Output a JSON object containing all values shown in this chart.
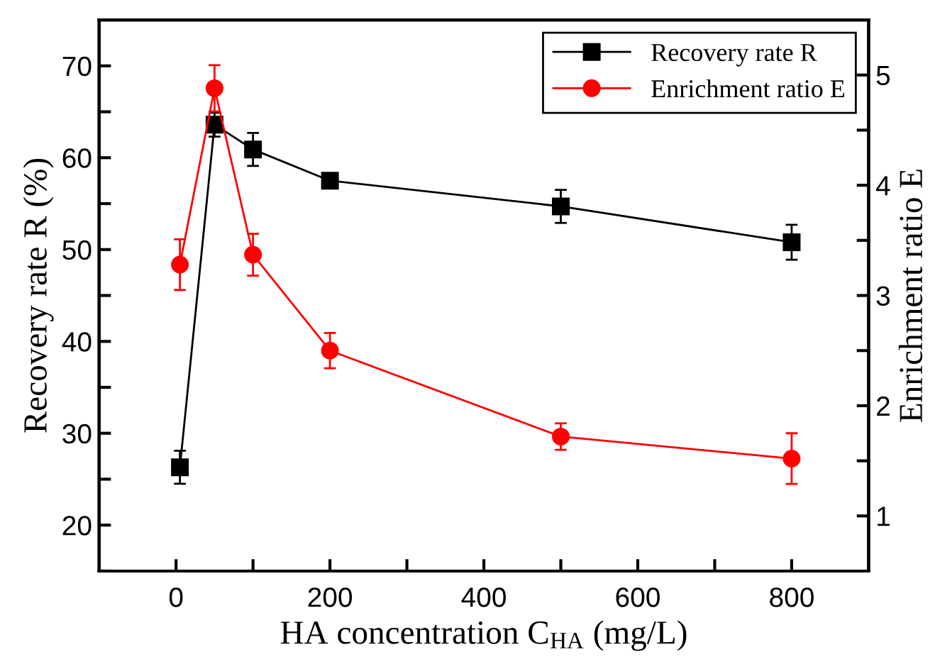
{
  "chart_data": {
    "type": "line",
    "xlabel": "HA concentration C$_{HA}$ (mg/L)",
    "ylabel": "Recovery rate R (%)",
    "y2label": "Enrichment ratio E",
    "x": [
      5,
      50,
      100,
      200,
      500,
      800
    ],
    "series": [
      {
        "name": "Recovery rate R",
        "color": "#000000",
        "marker": "square",
        "values": [
          26.3,
          63.6,
          60.9,
          57.5,
          54.7,
          50.8
        ],
        "errors": [
          1.8,
          1.3,
          1.8,
          0.8,
          1.8,
          1.9
        ]
      },
      {
        "name": "Enrichment ratio E",
        "color": "#ff0000",
        "marker": "circle",
        "axis": "y2",
        "values": [
          3.28,
          4.88,
          3.37,
          2.5,
          1.72,
          1.52
        ],
        "errors": [
          0.23,
          0.21,
          0.19,
          0.16,
          0.12,
          0.23
        ]
      }
    ],
    "xlim": [
      -100,
      900
    ],
    "xticks": [
      0,
      {
        "value": 100,
        "label": null
      },
      200,
      {
        "value": 300,
        "label": null
      },
      400,
      {
        "value": 500,
        "label": null
      },
      600,
      {
        "value": 700,
        "label": null
      },
      800
    ],
    "ylim": [
      15,
      75
    ],
    "yticks": [
      {
        "value": 15,
        "label": null
      },
      20,
      {
        "value": 25,
        "label": null
      },
      30,
      {
        "value": 35,
        "label": null
      },
      40,
      {
        "value": 45,
        "label": null
      },
      50,
      {
        "value": 55,
        "label": null
      },
      60,
      {
        "value": 65,
        "label": null
      },
      70
    ],
    "y2lim": [
      0.5,
      5.5
    ],
    "y2ticks": [
      1,
      {
        "value": 1.5,
        "label": null
      },
      2,
      {
        "value": 2.5,
        "label": null
      },
      3,
      {
        "value": 3.5,
        "label": null
      },
      4,
      {
        "value": 4.5,
        "label": null
      },
      5
    ],
    "legend": "top right",
    "grid": false,
    "line_style": "solid"
  }
}
